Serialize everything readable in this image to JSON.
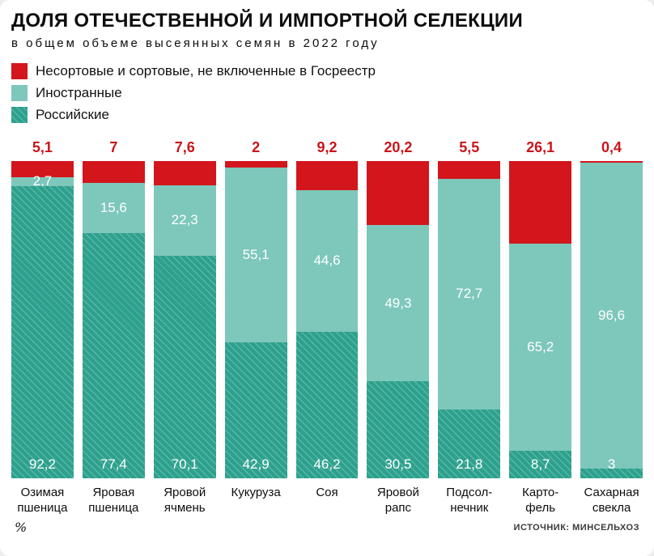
{
  "header": {
    "title": "ДОЛЯ ОТЕЧЕСТВЕННОЙ И ИМПОРТНОЙ СЕЛЕКЦИИ",
    "subtitle": "в общем объеме высеянных семян в 2022 году"
  },
  "footer": {
    "unit_label": "%",
    "source": "ИСТОЧНИК: МИНСЕЛЬХОЗ"
  },
  "chart_data": {
    "type": "bar",
    "stacked": true,
    "unit": "%",
    "ylim": [
      0,
      100
    ],
    "grid": false,
    "legend_position": "top-left",
    "title": "ДОЛЯ ОТЕЧЕСТВЕННОЙ И ИМПОРТНОЙ СЕЛЕКЦИИ",
    "subtitle": "в общем объеме высеянных семян в 2022 году",
    "categories": [
      "Озимая\nпшеница",
      "Яровая\nпшеница",
      "Яровой\nячмень",
      "Кукуруза",
      "Соя",
      "Яровой\nрапс",
      "Подсол-\nнечник",
      "Карто-\nфель",
      "Сахарная\nсвекла"
    ],
    "series": [
      {
        "name": "Несортовые и сортовые, не включенные в Госреестр",
        "key": "unregistered",
        "color": "#d2161c",
        "hatched": false,
        "values": [
          5.1,
          7,
          7.6,
          2,
          9.2,
          20.2,
          5.5,
          26.1,
          0.4
        ]
      },
      {
        "name": "Иностранные",
        "key": "foreign",
        "color": "#7ec7bb",
        "hatched": false,
        "values": [
          2.7,
          15.6,
          22.3,
          55.1,
          44.6,
          49.3,
          72.7,
          65.2,
          96.6
        ]
      },
      {
        "name": "Российские",
        "key": "russian",
        "color": "#2da18d",
        "hatched": true,
        "values": [
          92.2,
          77.4,
          70.1,
          42.9,
          46.2,
          30.5,
          21.8,
          8.7,
          3
        ]
      }
    ],
    "top_label_color": "#c9151b",
    "value_label_color": "#ffffff",
    "decimal_separator": ","
  }
}
